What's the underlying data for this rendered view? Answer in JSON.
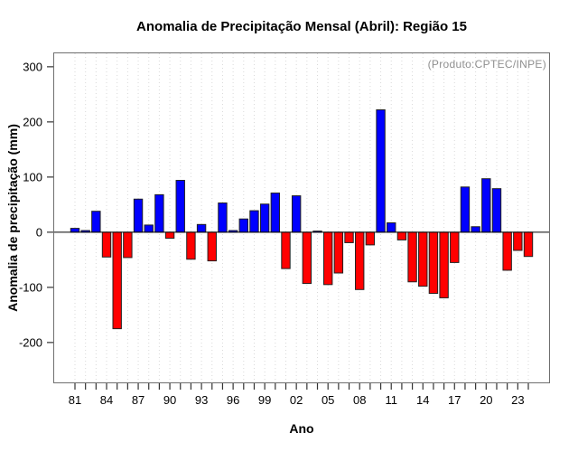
{
  "chart_data": {
    "type": "bar",
    "title": "Anomalia de Precipitação Mensal (Abril): Região 15",
    "xlabel": "Ano",
    "ylabel": "Anomalia de precipitação (mm)",
    "annotation": "(Produto:CPTEC/INPE)",
    "years": [
      1981,
      1982,
      1983,
      1984,
      1985,
      1986,
      1987,
      1988,
      1989,
      1990,
      1991,
      1992,
      1993,
      1994,
      1995,
      1996,
      1997,
      1998,
      1999,
      2000,
      2001,
      2002,
      2003,
      2004,
      2005,
      2006,
      2007,
      2008,
      2009,
      2010,
      2011,
      2012,
      2013,
      2014,
      2015,
      2016,
      2017,
      2018,
      2019,
      2020,
      2021,
      2022,
      2023,
      2024
    ],
    "values": [
      7,
      3,
      38,
      -45,
      -175,
      -46,
      60,
      13,
      68,
      -11,
      94,
      -49,
      14,
      -52,
      53,
      3,
      24,
      39,
      51,
      71,
      -66,
      66,
      -93,
      2,
      -95,
      -74,
      -19,
      -104,
      -23,
      222,
      17,
      -14,
      -90,
      -98,
      -111,
      -119,
      -55,
      82,
      10,
      97,
      79,
      -69,
      -33,
      -44
    ],
    "x_tick_labels": [
      "81",
      "84",
      "87",
      "90",
      "93",
      "96",
      "99",
      "02",
      "05",
      "08",
      "11",
      "14",
      "17",
      "20",
      "23"
    ],
    "x_label_every": 3,
    "y_ticks": [
      300,
      200,
      100,
      0,
      -100,
      -200
    ],
    "ylim": [
      -274,
      326
    ],
    "grid": "vertical-dotted",
    "legend": "none",
    "colors": {
      "positive": "#0000ff",
      "negative": "#ff0000",
      "bar_border": "#222222",
      "grid_line": "#d9d9d9",
      "box_border": "#6f6f6f",
      "annotation_gray": "#8f8f8f"
    }
  }
}
